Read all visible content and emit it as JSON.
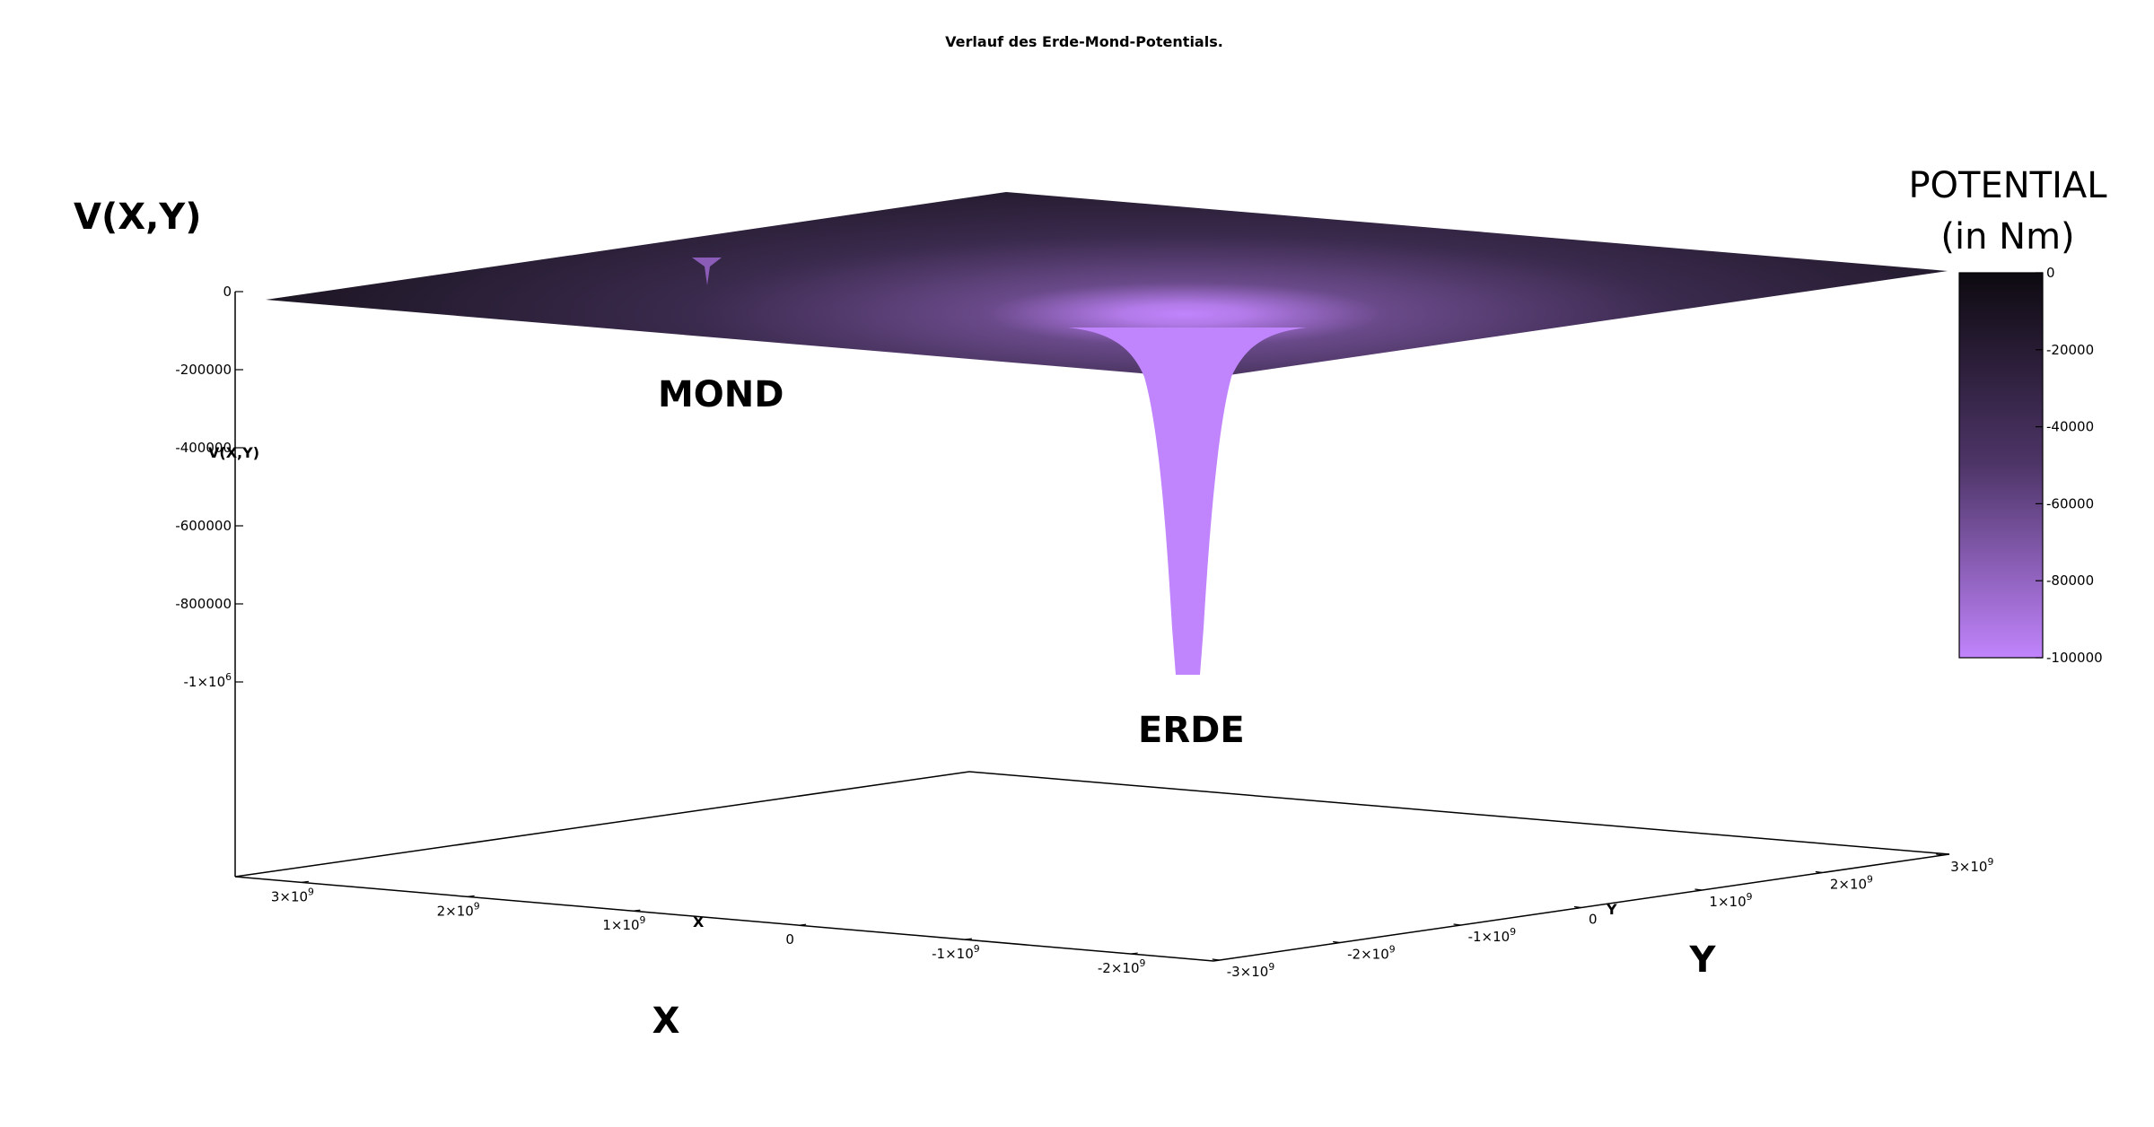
{
  "chart_data": {
    "type": "surface",
    "title": "Verlauf des Erde-Mond-Potentials.",
    "zlabel": "V(X,Y)",
    "zlabel_axis": "V(X,Y)",
    "xlabel": "X",
    "xlabel_axis": "X",
    "ylabel": "Y",
    "ylabel_axis": "Y",
    "x_ticks": [
      {
        "value": 3000000000.0,
        "mant": "3×10",
        "exp": "9"
      },
      {
        "value": 2000000000.0,
        "mant": "2×10",
        "exp": "9"
      },
      {
        "value": 1000000000.0,
        "mant": "1×10",
        "exp": "9"
      },
      {
        "value": 0,
        "mant": "0",
        "exp": ""
      },
      {
        "value": -1000000000.0,
        "mant": "-1×10",
        "exp": "9"
      },
      {
        "value": -2000000000.0,
        "mant": "-2×10",
        "exp": "9"
      }
    ],
    "y_ticks": [
      {
        "value": -3000000000.0,
        "mant": "-3×10",
        "exp": "9"
      },
      {
        "value": -2000000000.0,
        "mant": "-2×10",
        "exp": "9"
      },
      {
        "value": -1000000000.0,
        "mant": "-1×10",
        "exp": "9"
      },
      {
        "value": 0,
        "mant": "0",
        "exp": ""
      },
      {
        "value": 1000000000.0,
        "mant": "1×10",
        "exp": "9"
      },
      {
        "value": 2000000000.0,
        "mant": "2×10",
        "exp": "9"
      },
      {
        "value": 3000000000.0,
        "mant": "3×10",
        "exp": "9"
      }
    ],
    "z_ticks": [
      {
        "value": 0,
        "mant": "0",
        "exp": ""
      },
      {
        "value": -200000,
        "mant": "-200000",
        "exp": ""
      },
      {
        "value": -400000,
        "mant": "-400000",
        "exp": ""
      },
      {
        "value": -600000,
        "mant": "-600000",
        "exp": ""
      },
      {
        "value": -800000,
        "mant": "-800000",
        "exp": ""
      },
      {
        "value": -1000000,
        "mant": "-1×10",
        "exp": "6"
      }
    ],
    "zrange": [
      -1000000,
      0
    ],
    "colorbar": {
      "title_line1": "POTENTIAL",
      "title_line2": "(in Nm)",
      "range": [
        -100000,
        0
      ],
      "ticks": [
        "0",
        "-20000",
        "-40000",
        "-60000",
        "-80000",
        "-100000"
      ],
      "color_high": "#0d0a10",
      "color_mid": "#4e3568",
      "color_low": "#c084fc"
    },
    "annotations": {
      "earth": "ERDE",
      "moon": "MOND"
    },
    "grid": false
  }
}
